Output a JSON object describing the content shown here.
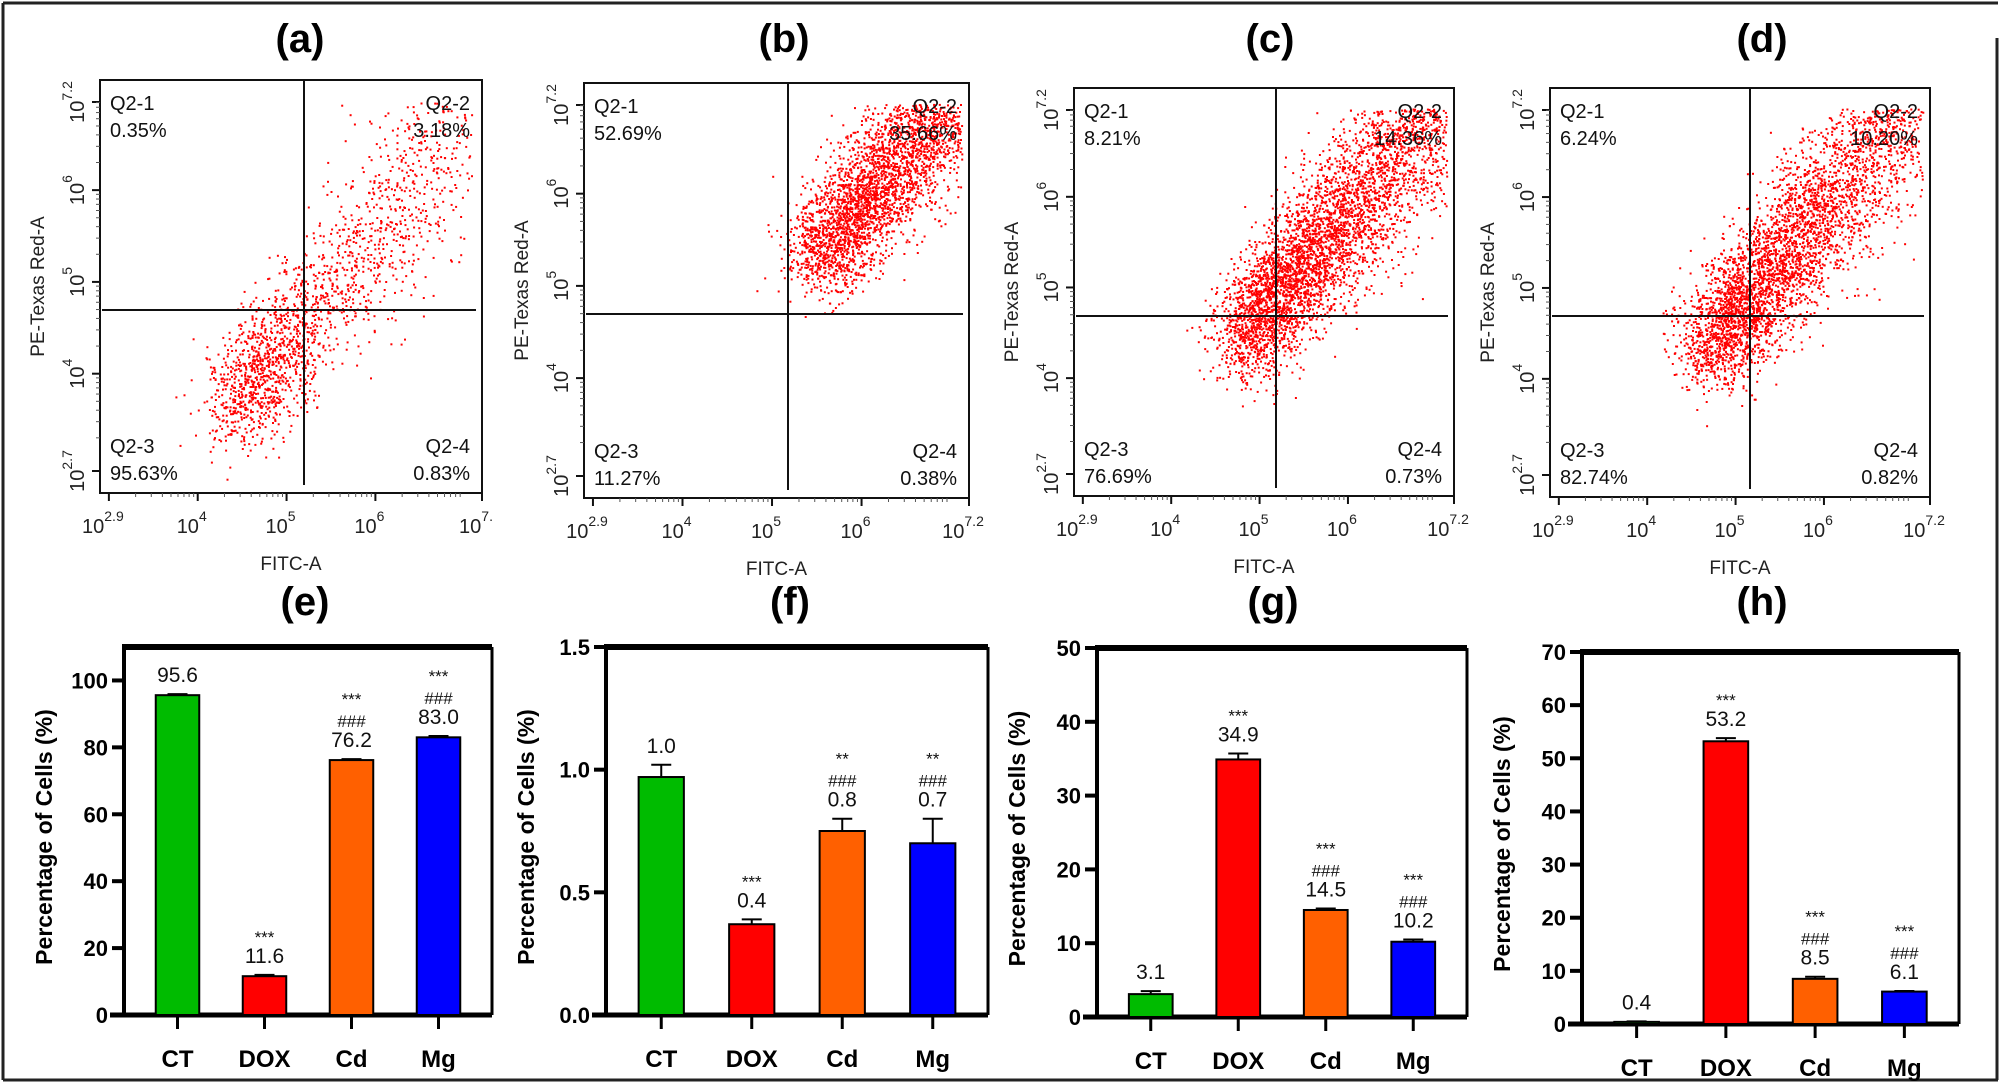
{
  "figure": {
    "colors": {
      "dot": "#ff0000",
      "CT": "#00bb00",
      "DOX": "#ff0000",
      "Cd": "#ff6000",
      "Mg": "#0000ff",
      "axis": "#000000"
    }
  },
  "chart_data": [
    {
      "id": "a",
      "type": "scatter",
      "title": "(a)",
      "xlabel": "FITC-A",
      "ylabel": "PE-Texas Red-A",
      "xscale": "log",
      "yscale": "log",
      "xlim_exp": [
        2.9,
        7.2
      ],
      "ylim_exp": [
        2.7,
        7.2
      ],
      "xtick_labels": [
        {
          "base": "10",
          "exp": "2.9"
        },
        {
          "base": "10",
          "exp": "4"
        },
        {
          "base": "10",
          "exp": "5"
        },
        {
          "base": "10",
          "exp": "6"
        },
        {
          "base": "10",
          "exp": "7."
        }
      ],
      "ytick_labels": [
        {
          "base": "10",
          "exp": "2.7"
        },
        {
          "base": "10",
          "exp": "4"
        },
        {
          "base": "10",
          "exp": "5"
        },
        {
          "base": "10",
          "exp": "6"
        },
        {
          "base": "10",
          "exp": "7.2"
        }
      ],
      "quadrants": [
        {
          "name": "Q2-1",
          "value": "0.35%"
        },
        {
          "name": "Q2-2",
          "value": "3.18%"
        },
        {
          "name": "Q2-3",
          "value": "95.63%"
        },
        {
          "name": "Q2-4",
          "value": "0.83%"
        }
      ]
    },
    {
      "id": "b",
      "type": "scatter",
      "title": "(b)",
      "xlabel": "FITC-A",
      "ylabel": "PE-Texas Red-A",
      "xscale": "log",
      "yscale": "log",
      "xlim_exp": [
        2.9,
        7.2
      ],
      "ylim_exp": [
        2.7,
        7.2
      ],
      "xtick_labels": [
        {
          "base": "10",
          "exp": "2.9"
        },
        {
          "base": "10",
          "exp": "4"
        },
        {
          "base": "10",
          "exp": "5"
        },
        {
          "base": "10",
          "exp": "6"
        },
        {
          "base": "10",
          "exp": "7.2"
        }
      ],
      "ytick_labels": [
        {
          "base": "10",
          "exp": "2.7"
        },
        {
          "base": "10",
          "exp": "4"
        },
        {
          "base": "10",
          "exp": "5"
        },
        {
          "base": "10",
          "exp": "6"
        },
        {
          "base": "10",
          "exp": "7.2"
        }
      ],
      "quadrants": [
        {
          "name": "Q2-1",
          "value": "52.69%"
        },
        {
          "name": "Q2-2",
          "value": "35.66%"
        },
        {
          "name": "Q2-3",
          "value": "11.27%"
        },
        {
          "name": "Q2-4",
          "value": "0.38%"
        }
      ]
    },
    {
      "id": "c",
      "type": "scatter",
      "title": "(c)",
      "xlabel": "FITC-A",
      "ylabel": "PE-Texas Red-A",
      "xscale": "log",
      "yscale": "log",
      "xlim_exp": [
        2.9,
        7.2
      ],
      "ylim_exp": [
        2.7,
        7.2
      ],
      "xtick_labels": [
        {
          "base": "10",
          "exp": "2.9"
        },
        {
          "base": "10",
          "exp": "4"
        },
        {
          "base": "10",
          "exp": "5"
        },
        {
          "base": "10",
          "exp": "6"
        },
        {
          "base": "10",
          "exp": "7.2"
        }
      ],
      "ytick_labels": [
        {
          "base": "10",
          "exp": "2.7"
        },
        {
          "base": "10",
          "exp": "4"
        },
        {
          "base": "10",
          "exp": "5"
        },
        {
          "base": "10",
          "exp": "6"
        },
        {
          "base": "10",
          "exp": "7.2"
        }
      ],
      "quadrants": [
        {
          "name": "Q2-1",
          "value": "8.21%"
        },
        {
          "name": "Q2-2",
          "value": "14.36%"
        },
        {
          "name": "Q2-3",
          "value": "76.69%"
        },
        {
          "name": "Q2-4",
          "value": "0.73%"
        }
      ]
    },
    {
      "id": "d",
      "type": "scatter",
      "title": "(d)",
      "xlabel": "FITC-A",
      "ylabel": "PE-Texas Red-A",
      "xscale": "log",
      "yscale": "log",
      "xlim_exp": [
        2.9,
        7.2
      ],
      "ylim_exp": [
        2.7,
        7.2
      ],
      "xtick_labels": [
        {
          "base": "10",
          "exp": "2.9"
        },
        {
          "base": "10",
          "exp": "4"
        },
        {
          "base": "10",
          "exp": "5"
        },
        {
          "base": "10",
          "exp": "6"
        },
        {
          "base": "10",
          "exp": "7.2"
        }
      ],
      "ytick_labels": [
        {
          "base": "10",
          "exp": "2.7"
        },
        {
          "base": "10",
          "exp": "4"
        },
        {
          "base": "10",
          "exp": "5"
        },
        {
          "base": "10",
          "exp": "6"
        },
        {
          "base": "10",
          "exp": "7.2"
        }
      ],
      "quadrants": [
        {
          "name": "Q2-1",
          "value": "6.24%"
        },
        {
          "name": "Q2-2",
          "value": "10.20%"
        },
        {
          "name": "Q2-3",
          "value": "82.74%"
        },
        {
          "name": "Q2-4",
          "value": "0.82%"
        }
      ]
    },
    {
      "id": "e",
      "type": "bar",
      "title": "(e)",
      "xlabel": "",
      "ylabel": "Percentage of Cells (%)",
      "ylim": [
        0,
        110
      ],
      "yticks": [
        0,
        20,
        40,
        60,
        80,
        100
      ],
      "categories": [
        "CT",
        "DOX",
        "Cd",
        "Mg"
      ],
      "values": [
        95.6,
        11.6,
        76.2,
        83.0
      ],
      "errors": [
        0.3,
        0.4,
        0.3,
        0.4
      ],
      "value_labels": [
        "95.6",
        "11.6",
        "76.2",
        "83.0"
      ],
      "significance": [
        [],
        [
          "***"
        ],
        [
          "***",
          "###"
        ],
        [
          "***",
          "###"
        ]
      ]
    },
    {
      "id": "f",
      "type": "bar",
      "title": "(f)",
      "xlabel": "",
      "ylabel": "Percentage of Cells (%)",
      "ylim": [
        0,
        1.5
      ],
      "yticks": [
        0.0,
        0.5,
        1.0,
        1.5
      ],
      "ytick_labels": [
        "0.0",
        "0.5",
        "1.0",
        "1.5"
      ],
      "categories": [
        "CT",
        "DOX",
        "Cd",
        "Mg"
      ],
      "values": [
        0.97,
        0.37,
        0.75,
        0.7
      ],
      "errors": [
        0.05,
        0.02,
        0.05,
        0.1
      ],
      "value_labels": [
        "1.0",
        "0.4",
        "0.8",
        "0.7"
      ],
      "significance": [
        [],
        [
          "***"
        ],
        [
          "**",
          "###"
        ],
        [
          "**",
          "###"
        ]
      ]
    },
    {
      "id": "g",
      "type": "bar",
      "title": "(g)",
      "xlabel": "",
      "ylabel": "Percentage of Cells (%)",
      "ylim": [
        0,
        50
      ],
      "yticks": [
        0,
        10,
        20,
        30,
        40,
        50
      ],
      "categories": [
        "CT",
        "DOX",
        "Cd",
        "Mg"
      ],
      "values": [
        3.1,
        34.9,
        14.5,
        10.2
      ],
      "errors": [
        0.4,
        0.8,
        0.2,
        0.3
      ],
      "value_labels": [
        "3.1",
        "34.9",
        "14.5",
        "10.2"
      ],
      "significance": [
        [],
        [
          "***"
        ],
        [
          "***",
          "###"
        ],
        [
          "***",
          "###"
        ]
      ]
    },
    {
      "id": "h",
      "type": "bar",
      "title": "(h)",
      "xlabel": "",
      "ylabel": "Percentage of Cells (%)",
      "ylim": [
        0,
        70
      ],
      "yticks": [
        0,
        10,
        20,
        30,
        40,
        50,
        60,
        70
      ],
      "categories": [
        "CT",
        "DOX",
        "Cd",
        "Mg"
      ],
      "values": [
        0.4,
        53.2,
        8.5,
        6.1
      ],
      "errors": [
        0.1,
        0.6,
        0.4,
        0.1
      ],
      "value_labels": [
        "0.4",
        "53.2",
        "8.5",
        "6.1"
      ],
      "significance": [
        [],
        [
          "***"
        ],
        [
          "***",
          "###"
        ],
        [
          "***",
          "###"
        ]
      ]
    }
  ]
}
